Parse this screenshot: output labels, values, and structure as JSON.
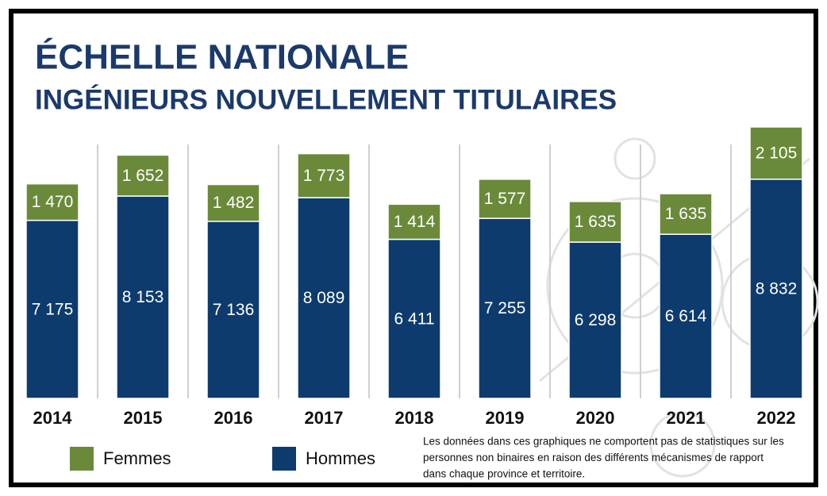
{
  "chart_data": {
    "type": "stacked_bar",
    "title": "ÉCHELLE NATIONALE",
    "subtitle": "INGÉNIEURS NOUVELLEMENT TITULAIRES",
    "categories": [
      "2014",
      "2015",
      "2016",
      "2017",
      "2018",
      "2019",
      "2020",
      "2021",
      "2022"
    ],
    "series": [
      {
        "name": "Femmes",
        "color": "#6a8a3a",
        "values": [
          1470,
          1652,
          1482,
          1773,
          1414,
          1577,
          1635,
          1635,
          2105
        ],
        "value_labels": [
          "1 470",
          "1 652",
          "1 482",
          "1 773",
          "1 414",
          "1 577",
          "1 635",
          "1 635",
          "2 105"
        ]
      },
      {
        "name": "Hommes",
        "color": "#0d3b6e",
        "values": [
          7175,
          8153,
          7136,
          8089,
          6411,
          7255,
          6298,
          6614,
          8832
        ],
        "value_labels": [
          "7 175",
          "8 153",
          "7 136",
          "8 089",
          "6 411",
          "7 255",
          "6 298",
          "6 614",
          "8 832"
        ]
      }
    ],
    "note": [
      "Les données dans ces graphiques ne comportent pas de statistiques sur les",
      "personnes non binaires en raison des différents mécanismes de rapport",
      "dans chaque province et territoire."
    ]
  }
}
